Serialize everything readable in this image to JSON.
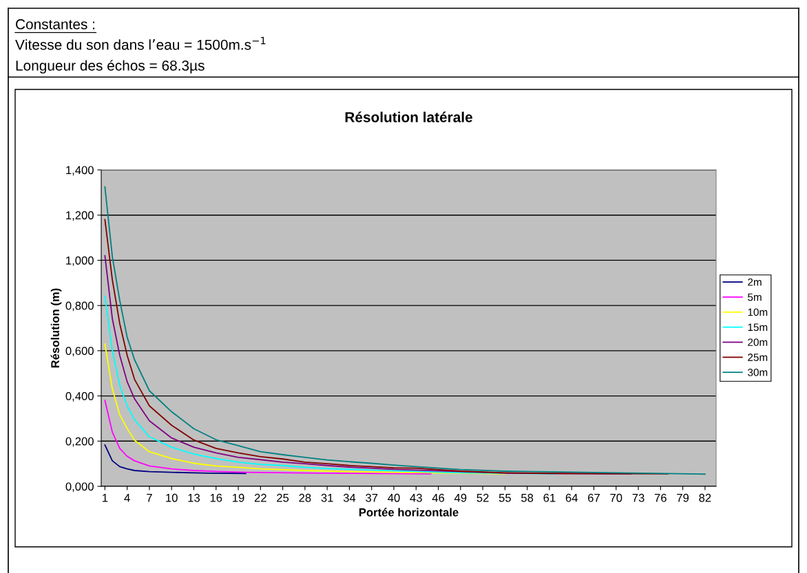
{
  "chart_data": {
    "type": "line",
    "title": "Résolution latérale",
    "xlabel": "Portée horizontale",
    "ylabel": "Résolution (m)",
    "annotations": [
      "Constantes :",
      "Vitesse du son dans l’eau = 1500m.s$^{−1}$",
      "Longueur des échos = 68.3µs"
    ],
    "xlim": [
      0.5,
      83.5
    ],
    "xticks": [
      1,
      4,
      7,
      10,
      13,
      16,
      19,
      22,
      25,
      28,
      31,
      34,
      37,
      40,
      43,
      46,
      49,
      52,
      55,
      58,
      61,
      64,
      67,
      70,
      73,
      76,
      79,
      82
    ],
    "ylim": [
      0,
      1.4
    ],
    "yticks": [
      {
        "value": 0,
        "label": "0,000"
      },
      {
        "value": 0.2,
        "label": "0,200"
      },
      {
        "value": 0.4,
        "label": "0,400"
      },
      {
        "value": 0.6,
        "label": "0,600"
      },
      {
        "value": 0.8,
        "label": "0,800"
      },
      {
        "value": 1.0,
        "label": "1,000"
      },
      {
        "value": 1.2,
        "label": "1,200"
      },
      {
        "value": 1.4,
        "label": "1,400"
      }
    ],
    "grid": "y",
    "legend": "right",
    "marker": "none",
    "line_style": "solid",
    "series": [
      {
        "name": "2m",
        "color": "#000080",
        "x": [
          1,
          2,
          3,
          4,
          5,
          7,
          10,
          15,
          20
        ],
        "values": [
          0.183,
          0.113,
          0.087,
          0.077,
          0.07,
          0.065,
          0.062,
          0.058,
          0.057
        ]
      },
      {
        "name": "5m",
        "color": "#ff00ff",
        "x": [
          1,
          2,
          3,
          4,
          5,
          7,
          10,
          13,
          16,
          20,
          30,
          45
        ],
        "values": [
          0.38,
          0.24,
          0.168,
          0.133,
          0.113,
          0.09,
          0.077,
          0.07,
          0.066,
          0.062,
          0.058,
          0.055
        ]
      },
      {
        "name": "10m",
        "color": "#ffff00",
        "x": [
          1,
          2,
          3,
          4,
          5,
          7,
          10,
          13,
          16,
          19,
          22,
          28,
          34,
          40,
          55
        ],
        "values": [
          0.63,
          0.432,
          0.317,
          0.256,
          0.204,
          0.153,
          0.123,
          0.102,
          0.09,
          0.084,
          0.077,
          0.07,
          0.065,
          0.062,
          0.055
        ]
      },
      {
        "name": "15m",
        "color": "#00ffff",
        "x": [
          1,
          2,
          3,
          4,
          5,
          7,
          10,
          13,
          16,
          19,
          22,
          25,
          28,
          31,
          37,
          43,
          49,
          62
        ],
        "values": [
          0.841,
          0.6,
          0.447,
          0.356,
          0.295,
          0.219,
          0.173,
          0.143,
          0.123,
          0.107,
          0.097,
          0.092,
          0.084,
          0.079,
          0.072,
          0.066,
          0.06,
          0.055
        ]
      },
      {
        "name": "20m",
        "color": "#800080",
        "x": [
          1,
          2,
          3,
          4,
          5,
          7,
          10,
          13,
          16,
          19,
          22,
          25,
          28,
          31,
          34,
          37,
          40,
          49,
          55,
          72
        ],
        "values": [
          1.02,
          0.742,
          0.58,
          0.463,
          0.387,
          0.29,
          0.214,
          0.173,
          0.148,
          0.128,
          0.118,
          0.107,
          0.1,
          0.092,
          0.085,
          0.08,
          0.075,
          0.065,
          0.058,
          0.055
        ]
      },
      {
        "name": "25m",
        "color": "#800000",
        "x": [
          1,
          2,
          3,
          4,
          5,
          7,
          10,
          13,
          16,
          19,
          22,
          25,
          28,
          31,
          34,
          37,
          40,
          43,
          49,
          55,
          61,
          77
        ],
        "values": [
          1.18,
          0.914,
          0.72,
          0.58,
          0.473,
          0.356,
          0.27,
          0.205,
          0.168,
          0.148,
          0.131,
          0.121,
          0.107,
          0.1,
          0.092,
          0.087,
          0.082,
          0.08,
          0.067,
          0.06,
          0.057,
          0.055
        ]
      },
      {
        "name": "30m",
        "color": "#008080",
        "x": [
          1,
          2,
          3,
          4,
          5,
          7,
          10,
          13,
          16,
          19,
          22,
          25,
          28,
          31,
          34,
          37,
          40,
          43,
          49,
          55,
          61,
          70,
          82
        ],
        "values": [
          1.325,
          1.017,
          0.823,
          0.66,
          0.56,
          0.423,
          0.33,
          0.255,
          0.206,
          0.18,
          0.153,
          0.14,
          0.128,
          0.117,
          0.109,
          0.102,
          0.094,
          0.087,
          0.074,
          0.067,
          0.064,
          0.06,
          0.054
        ]
      }
    ]
  }
}
